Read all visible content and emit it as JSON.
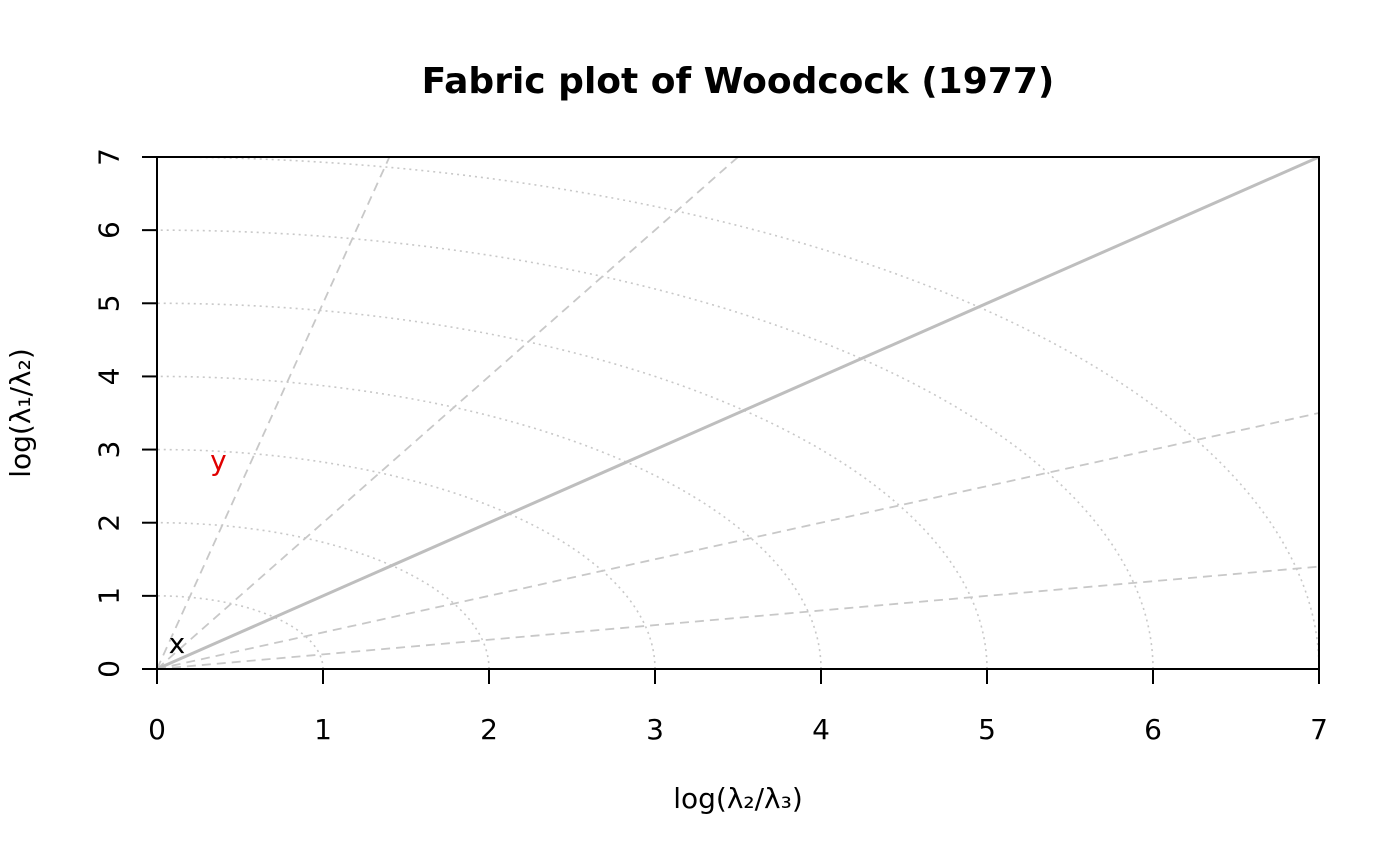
{
  "chart_data": {
    "type": "scatter",
    "title": "Fabric plot of Woodcock (1977)",
    "xlabel": "log(λ₂/λ₃)",
    "ylabel": "log(λ₁/λ₂)",
    "xlim": [
      0,
      7
    ],
    "ylim": [
      0,
      7
    ],
    "x_ticks": [
      "0",
      "1",
      "2",
      "3",
      "4",
      "5",
      "6",
      "7"
    ],
    "y_ticks": [
      "0",
      "1",
      "2",
      "3",
      "4",
      "5",
      "6",
      "7"
    ],
    "points": [
      {
        "label": "x",
        "x": 0.12,
        "y": 0.35,
        "color": "#000000"
      },
      {
        "label": "y",
        "x": 0.37,
        "y": 2.85,
        "color": "#e00000"
      }
    ],
    "reference_line": {
      "slope": 1,
      "color": "#bebebe"
    },
    "guide_slopes": [
      0.2,
      0.5,
      2,
      5
    ],
    "guide_radii": [
      1,
      2,
      3,
      4,
      5,
      6,
      7
    ],
    "guide_color": "#c8c8c8"
  }
}
